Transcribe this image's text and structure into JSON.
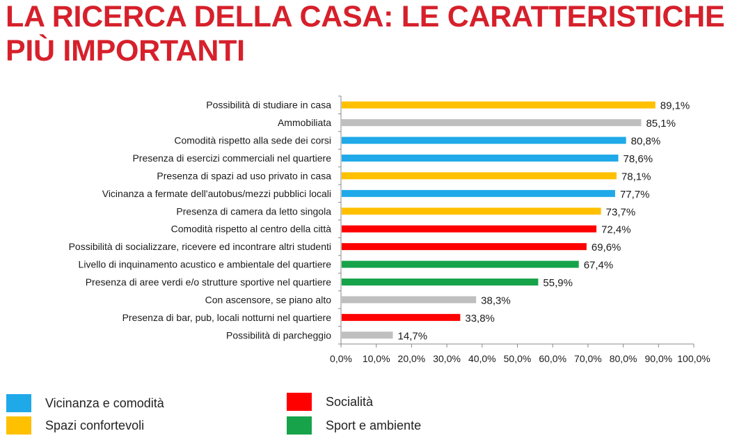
{
  "title": {
    "line1": "LA RICERCA DELLA CASA: LE CARATTERISTICHE",
    "line2": "PIÙ IMPORTANTI"
  },
  "colors": {
    "title": "#d6202b",
    "Vicinanza e comodità": "#1fa9e8",
    "Spazi confortevoli": "#ffc000",
    "Socialità": "#ff0000",
    "Sport e ambiente": "#16a34a",
    "other": "#bfbfbf",
    "axis": "#888888"
  },
  "legend": [
    {
      "label": "Vicinanza e comodità",
      "color": "#1fa9e8"
    },
    {
      "label": "Spazi confortevoli",
      "color": "#ffc000"
    },
    {
      "label": "Socialità",
      "color": "#ff0000"
    },
    {
      "label": "Sport e ambiente",
      "color": "#16a34a"
    }
  ],
  "chart_data": {
    "type": "bar",
    "orientation": "horizontal",
    "categories": [
      "Possibilità di studiare in casa",
      "Ammobiliata",
      "Comodità rispetto alla sede dei corsi",
      "Presenza di esercizi commerciali nel quartiere",
      "Presenza di spazi ad uso privato in casa",
      "Vicinanza a fermate dell'autobus/mezzi pubblici locali",
      "Presenza di camera da letto singola",
      "Comodità rispetto al centro della città",
      "Possibilità di socializzare, ricevere ed incontrare altri studenti",
      "Livello di inquinamento acustico e ambientale del quartiere",
      "Presenza di aree verdi e/o strutture sportive nel quartiere",
      "Con ascensore, se piano alto",
      "Presenza di bar, pub, locali notturni nel quartiere",
      "Possibilità di parcheggio"
    ],
    "values": [
      89.1,
      85.1,
      80.8,
      78.6,
      78.1,
      77.7,
      73.7,
      72.4,
      69.6,
      67.4,
      55.9,
      38.3,
      33.8,
      14.7
    ],
    "value_labels": [
      "89,1%",
      "85,1%",
      "80,8%",
      "78,6%",
      "78,1%",
      "77,7%",
      "73,7%",
      "72,4%",
      "69,6%",
      "67,4%",
      "55,9%",
      "38,3%",
      "33,8%",
      "14,7%"
    ],
    "bar_colors": [
      "#ffc000",
      "#bfbfbf",
      "#1fa9e8",
      "#1fa9e8",
      "#ffc000",
      "#1fa9e8",
      "#ffc000",
      "#ff0000",
      "#ff0000",
      "#16a34a",
      "#16a34a",
      "#bfbfbf",
      "#ff0000",
      "#bfbfbf"
    ],
    "xlim": [
      0,
      100
    ],
    "xticks": [
      0,
      10,
      20,
      30,
      40,
      50,
      60,
      70,
      80,
      90,
      100
    ],
    "xtick_labels": [
      "0,0%",
      "10,0%",
      "20,0%",
      "30,0%",
      "40,0%",
      "50,0%",
      "60,0%",
      "70,0%",
      "80,0%",
      "90,0%",
      "100,0%"
    ],
    "grid": false,
    "legend_position": "bottom"
  }
}
